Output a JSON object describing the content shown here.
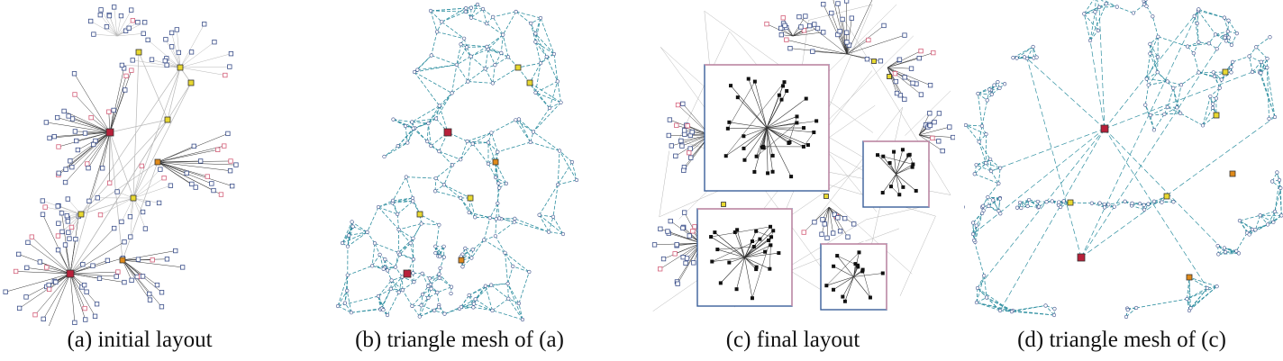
{
  "figure": {
    "panels": [
      {
        "id": "a",
        "caption": "(a) initial layout"
      },
      {
        "id": "b",
        "caption": "(b) triangle mesh of (a)"
      },
      {
        "id": "c",
        "caption": "(c) final layout"
      },
      {
        "id": "d",
        "caption": "(d) triangle mesh of (c)"
      }
    ],
    "colors": {
      "edge_gray": "#b8b8b8",
      "edge_dark": "#333333",
      "mesh_teal": "#2e8fa0",
      "node_outline": "#3b4f8a",
      "node_pink": "#d4607a",
      "hub_red": "#b8203a",
      "hub_orange": "#e08a1a",
      "hub_yellow": "#e8d830",
      "box_blue": "#3a5f9a",
      "box_pink": "#d88aa0"
    }
  }
}
